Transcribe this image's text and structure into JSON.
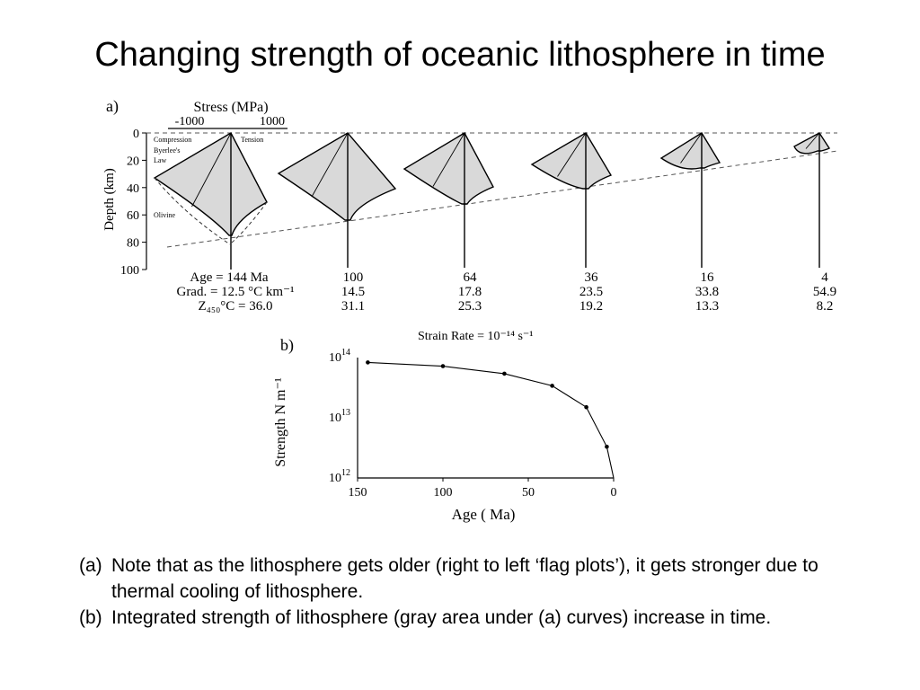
{
  "slide": {
    "title": "Changing strength of oceanic lithosphere in time"
  },
  "panel_a": {
    "label": "a)",
    "stress_axis_label": "Stress (MPa)",
    "stress_ticks": [
      "-1000",
      "1000"
    ],
    "depth_axis_label": "Depth (km)",
    "depth_ticks": [
      "0",
      "20",
      "40",
      "60",
      "80",
      "100"
    ],
    "annotations": {
      "compression": "Compression",
      "tension": "Tension",
      "byerlee_1": "Byerlee's",
      "byerlee_2": "Law",
      "olivine": "Olivine"
    },
    "row_labels": {
      "age": "Age = 144 Ma",
      "grad": "Grad. = 12.5 °C km⁻¹",
      "z450": "Z₄₅₀°C = 36.0"
    },
    "columns": [
      {
        "age": "144",
        "grad": "12.5",
        "z": "36.0"
      },
      {
        "age": "100",
        "grad": "14.5",
        "z": "31.1"
      },
      {
        "age": "64",
        "grad": "17.8",
        "z": "25.3"
      },
      {
        "age": "36",
        "grad": "23.5",
        "z": "19.2"
      },
      {
        "age": "16",
        "grad": "33.8",
        "z": "13.3"
      },
      {
        "age": "4",
        "grad": "54.9",
        "z": "8.2"
      }
    ],
    "fill_color": "#d9d9d9"
  },
  "panel_b": {
    "label": "b)",
    "strain_rate": "Strain Rate = 10⁻¹⁴ s⁻¹"
  },
  "chart_data": [
    {
      "type": "line",
      "title": "",
      "xlabel": "Age ( Ma)",
      "ylabel": "Strength N m⁻¹",
      "x_reversed": true,
      "y_scale": "log",
      "xlim": [
        150,
        0
      ],
      "ylim": [
        1000000000000.0,
        100000000000000.0
      ],
      "x_ticks": [
        "150",
        "100",
        "50",
        "0"
      ],
      "y_ticks": [
        {
          "base": "10",
          "exp": "12"
        },
        {
          "base": "10",
          "exp": "13"
        },
        {
          "base": "10",
          "exp": "14"
        }
      ],
      "x": [
        144,
        100,
        64,
        36,
        16,
        4
      ],
      "y": [
        83000000000000.0,
        72000000000000.0,
        54000000000000.0,
        34000000000000.0,
        15000000000000.0,
        3300000000000.0
      ]
    }
  ],
  "notes": [
    {
      "marker": "(a)",
      "text": "Note that as the lithosphere gets older (right to left ‘flag plots’), it gets stronger due to thermal cooling of lithosphere."
    },
    {
      "marker": "(b)",
      "text": "Integrated strength of lithosphere (gray area under (a) curves) increase in time."
    }
  ]
}
